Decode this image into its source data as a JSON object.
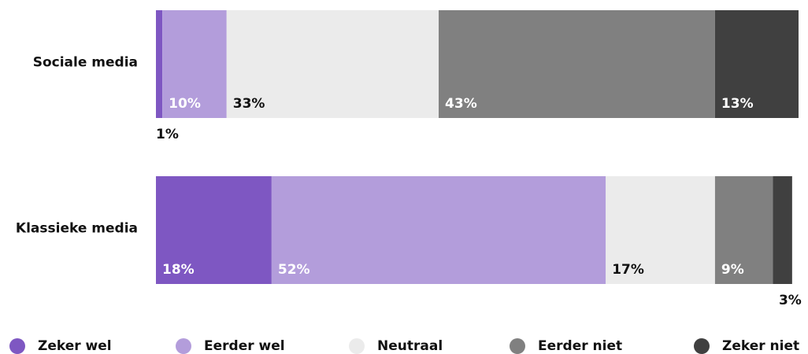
{
  "chart_data": {
    "type": "stacked_bar_horizontal",
    "categories": [
      "Sociale media",
      "Klassieke media"
    ],
    "xlim": [
      0,
      100
    ],
    "legend": "bottom",
    "series": [
      {
        "name": "Zeker wel",
        "color": "#7e57c2",
        "values": [
          1,
          18
        ]
      },
      {
        "name": "Eerder wel",
        "color": "#b39ddb",
        "values": [
          10,
          52
        ]
      },
      {
        "name": "Neutraal",
        "color": "#ebebeb",
        "values": [
          33,
          17
        ]
      },
      {
        "name": "Eerder niet",
        "color": "#808080",
        "values": [
          43,
          9
        ]
      },
      {
        "name": "Zeker niet",
        "color": "#404040",
        "values": [
          13,
          3
        ]
      }
    ],
    "value_labels": [
      [
        "1%",
        "10%",
        "33%",
        "43%",
        "13%"
      ],
      [
        "18%",
        "52%",
        "17%",
        "9%",
        "3%"
      ]
    ]
  }
}
